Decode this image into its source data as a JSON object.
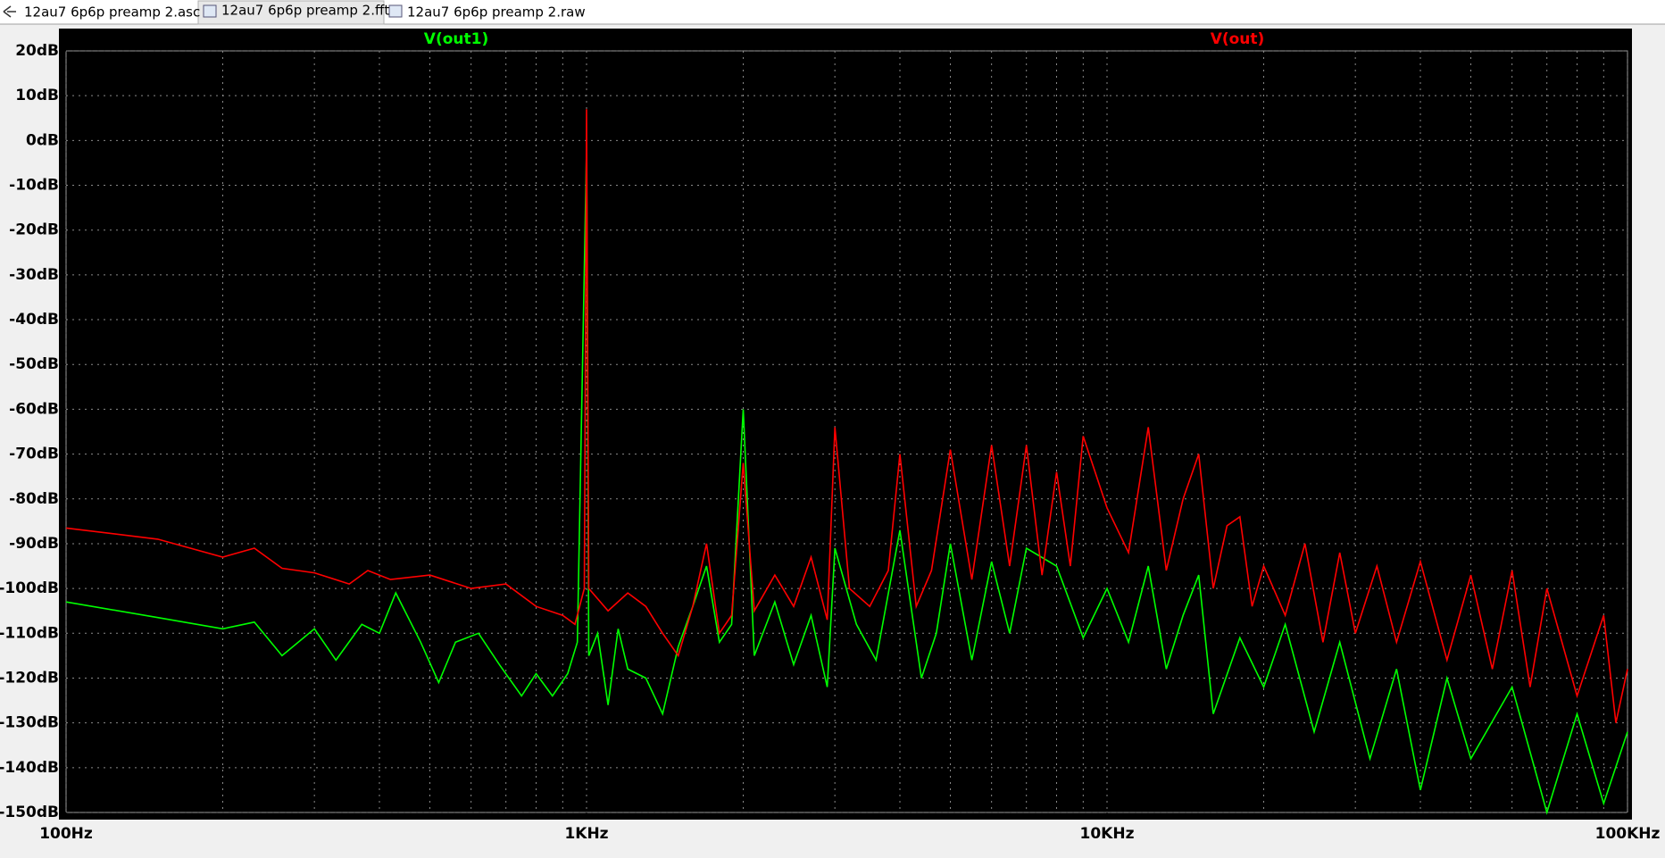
{
  "tabs": [
    {
      "label": "12au7 6p6p preamp 2.asc"
    },
    {
      "label": "12au7 6p6p preamp 2.fft"
    },
    {
      "label": "12au7 6p6p preamp 2.raw"
    }
  ],
  "chart_data": {
    "type": "line",
    "xscale": "log",
    "grid": true,
    "xlim": [
      100,
      100000
    ],
    "ylim": [
      -150,
      20
    ],
    "xticks": [
      {
        "value": 100,
        "label": "100Hz"
      },
      {
        "value": 1000,
        "label": "1KHz"
      },
      {
        "value": 10000,
        "label": "10KHz"
      },
      {
        "value": 100000,
        "label": "100KHz"
      }
    ],
    "xminor_ticks": [
      200,
      300,
      400,
      500,
      600,
      700,
      800,
      900,
      2000,
      3000,
      4000,
      5000,
      6000,
      7000,
      8000,
      9000,
      20000,
      30000,
      40000,
      50000,
      60000,
      70000,
      80000,
      90000
    ],
    "yticks": [
      {
        "value": 20,
        "label": "20dB"
      },
      {
        "value": 10,
        "label": "10dB"
      },
      {
        "value": 0,
        "label": "0dB"
      },
      {
        "value": -10,
        "label": "-10dB"
      },
      {
        "value": -20,
        "label": "-20dB"
      },
      {
        "value": -30,
        "label": "-30dB"
      },
      {
        "value": -40,
        "label": "-40dB"
      },
      {
        "value": -50,
        "label": "-50dB"
      },
      {
        "value": -60,
        "label": "-60dB"
      },
      {
        "value": -70,
        "label": "-70dB"
      },
      {
        "value": -80,
        "label": "-80dB"
      },
      {
        "value": -90,
        "label": "-90dB"
      },
      {
        "value": -100,
        "label": "-100dB"
      },
      {
        "value": -110,
        "label": "-110dB"
      },
      {
        "value": -120,
        "label": "-120dB"
      },
      {
        "value": -130,
        "label": "-130dB"
      },
      {
        "value": -140,
        "label": "-140dB"
      },
      {
        "value": -150,
        "label": "-150dB"
      }
    ],
    "series": [
      {
        "name": "V(out1)",
        "color": "#00ff00",
        "x": [
          100,
          150,
          200,
          230,
          260,
          300,
          330,
          370,
          400,
          430,
          480,
          520,
          560,
          620,
          680,
          750,
          800,
          860,
          920,
          960,
          1000,
          1010,
          1050,
          1100,
          1150,
          1200,
          1300,
          1400,
          1500,
          1600,
          1700,
          1800,
          1900,
          2000,
          2100,
          2300,
          2500,
          2700,
          2900,
          3000,
          3300,
          3600,
          4000,
          4400,
          4700,
          5000,
          5500,
          6000,
          6500,
          7000,
          8000,
          9000,
          10000,
          11000,
          12000,
          13000,
          14000,
          15000,
          16000,
          18000,
          20000,
          22000,
          25000,
          28000,
          32000,
          36000,
          40000,
          45000,
          50000,
          60000,
          70000,
          80000,
          90000,
          100000
        ],
        "values": [
          -103,
          -106.5,
          -109,
          -107.5,
          -115,
          -109,
          -116,
          -108,
          -110,
          -101,
          -112,
          -121,
          -112,
          -110,
          -117,
          -124,
          -119,
          -124,
          -119,
          -112,
          -2,
          -115,
          -110,
          -126,
          -109,
          -118,
          -120,
          -128,
          -113,
          -104,
          -95,
          -112,
          -108,
          -60,
          -115,
          -103,
          -117,
          -106,
          -122,
          -91,
          -108,
          -116,
          -87,
          -120,
          -110,
          -90,
          -116,
          -94,
          -110,
          -91,
          -95,
          -111,
          -100,
          -112,
          -95,
          -118,
          -106,
          -97,
          -128,
          -111,
          -122,
          -108,
          -132,
          -112,
          -138,
          -118,
          -145,
          -120,
          -138,
          -122,
          -150,
          -128,
          -148,
          -132
        ]
      },
      {
        "name": "V(out)",
        "color": "#ff0000",
        "x": [
          100,
          150,
          200,
          230,
          260,
          300,
          350,
          380,
          420,
          500,
          600,
          700,
          800,
          900,
          950,
          990,
          1000,
          1010,
          1100,
          1200,
          1300,
          1400,
          1500,
          1600,
          1700,
          1800,
          1900,
          2000,
          2100,
          2300,
          2500,
          2700,
          2900,
          3000,
          3200,
          3500,
          3800,
          4000,
          4300,
          4600,
          5000,
          5500,
          6000,
          6500,
          7000,
          7500,
          8000,
          8500,
          9000,
          10000,
          11000,
          12000,
          13000,
          14000,
          15000,
          16000,
          17000,
          18000,
          19000,
          20000,
          22000,
          24000,
          26000,
          28000,
          30000,
          33000,
          36000,
          40000,
          45000,
          50000,
          55000,
          60000,
          65000,
          70000,
          80000,
          90000,
          95000,
          100000
        ],
        "values": [
          -86.5,
          -89,
          -93,
          -91,
          -95.5,
          -96.5,
          -99,
          -96,
          -98,
          -97,
          -100,
          -99,
          -104,
          -106,
          -108,
          -100,
          7,
          -100,
          -105,
          -101,
          -104,
          -110,
          -115,
          -104,
          -90,
          -110,
          -106,
          -72,
          -105,
          -97,
          -104,
          -93,
          -107,
          -64,
          -100,
          -104,
          -96,
          -70,
          -104,
          -96,
          -69,
          -98,
          -68,
          -95,
          -68,
          -97,
          -74,
          -95,
          -66,
          -82,
          -92,
          -64,
          -96,
          -80,
          -70,
          -100,
          -86,
          -84,
          -104,
          -95,
          -106,
          -90,
          -112,
          -92,
          -110,
          -95,
          -112,
          -94,
          -116,
          -97,
          -118,
          -96,
          -122,
          -100,
          -124,
          -106,
          -130,
          -118
        ]
      }
    ]
  }
}
